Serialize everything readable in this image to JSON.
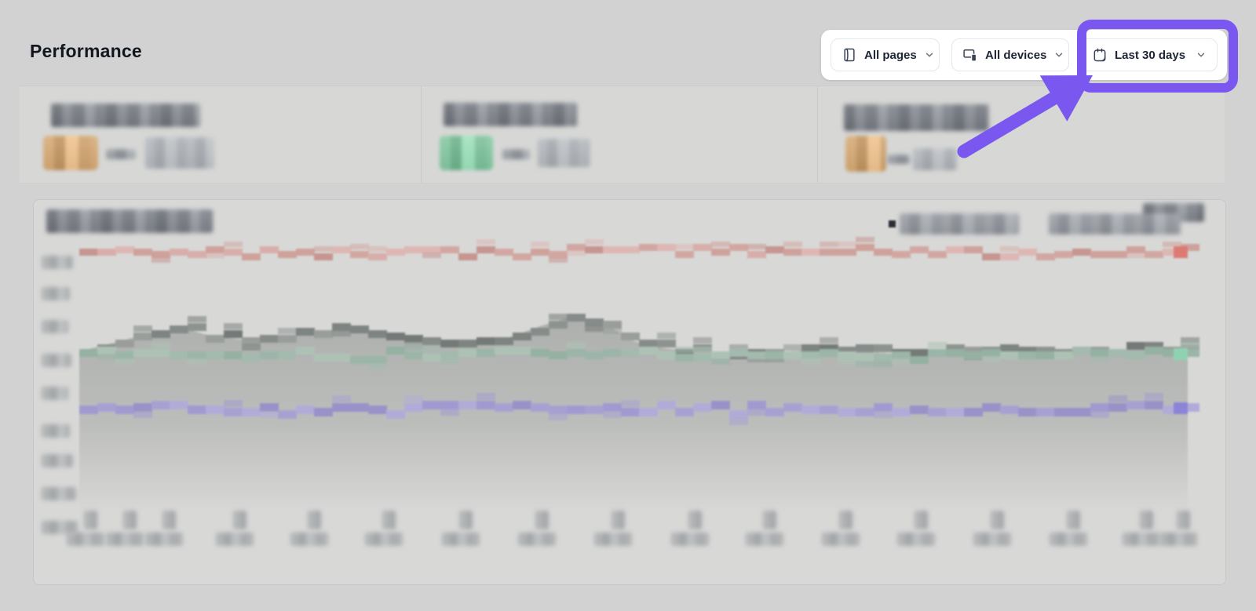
{
  "page": {
    "title": "Performance"
  },
  "filter_bar": {
    "buttons": [
      {
        "label": "All pages",
        "icon": "pages-icon"
      },
      {
        "label": "All devices",
        "icon": "devices-icon"
      },
      {
        "label": "Last 30 days",
        "icon": "calendar-icon"
      }
    ]
  },
  "annotation": {
    "type": "highlight-rect-with-arrow",
    "target": "Last 30 days",
    "color": "#7a58f0"
  },
  "stat_cards": [
    {
      "badge_color": "#d5a873"
    },
    {
      "badge_color": "#82c7a0"
    },
    {
      "badge_color": "#d5a873"
    }
  ],
  "chart": {
    "legend_swatch_color": "#2a2d33",
    "content_redacted": true,
    "series": [
      {
        "name": "red-line",
        "palette": [
          "#d7aeaa",
          "#cfa19b",
          "#c79690",
          "#ddb7b3",
          "#d2a7a1"
        ],
        "marker": "#dc7b74"
      },
      {
        "name": "gray-line",
        "palette": [
          "#8d938f",
          "#7e8481",
          "#999e9a",
          "#868c89",
          "#747a77"
        ],
        "marker": null
      },
      {
        "name": "green-line",
        "palette": [
          "#a3baae",
          "#94b1a2",
          "#adc2b5",
          "#9bb5a8"
        ],
        "marker": "#8fd2b2"
      },
      {
        "name": "purple-line",
        "palette": [
          "#a7a1d2",
          "#9992c8",
          "#b1abd8",
          "#a09ad0"
        ],
        "marker": "#8c84d6"
      }
    ],
    "fill_color": "110,116,112"
  }
}
